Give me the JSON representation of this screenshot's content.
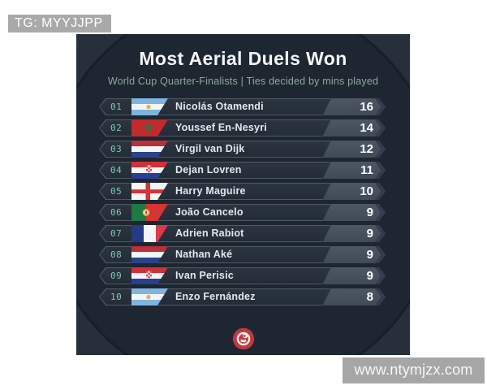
{
  "overlays": {
    "tg_label": "TG: MYYJJPP",
    "watermark": "www.ntymjzx.com"
  },
  "card": {
    "title": "Most Aerial Duels Won",
    "subtitle": "World Cup Quarter-Finalists | Ties decided by mins played",
    "logo_icon": "red-swirl-brand-logo"
  },
  "colors": {
    "card_inner": "#1e2631",
    "card_outer": "#272f3a",
    "rank_accent": "#7ec9b1",
    "subtitle": "#8fa89d",
    "logo_red": "#be3a3f"
  },
  "chart_data": {
    "type": "table",
    "title": "Most Aerial Duels Won",
    "subtitle": "World Cup Quarter-Finalists | Ties decided by mins played",
    "columns": [
      "rank",
      "country_flag",
      "player",
      "aerial_duels_won"
    ],
    "rows": [
      {
        "rank": "01",
        "country": "Argentina",
        "player": "Nicolás Otamendi",
        "value": 16
      },
      {
        "rank": "02",
        "country": "Morocco",
        "player": "Youssef En-Nesyri",
        "value": 14
      },
      {
        "rank": "03",
        "country": "Netherlands",
        "player": "Virgil van Dijk",
        "value": 12
      },
      {
        "rank": "04",
        "country": "Croatia",
        "player": "Dejan Lovren",
        "value": 11
      },
      {
        "rank": "05",
        "country": "England",
        "player": "Harry Maguire",
        "value": 10
      },
      {
        "rank": "06",
        "country": "Portugal",
        "player": "João Cancelo",
        "value": 9
      },
      {
        "rank": "07",
        "country": "France",
        "player": "Adrien Rabiot",
        "value": 9
      },
      {
        "rank": "08",
        "country": "Netherlands",
        "player": "Nathan Aké",
        "value": 9
      },
      {
        "rank": "09",
        "country": "Croatia",
        "player": "Ivan Perisic",
        "value": 9
      },
      {
        "rank": "10",
        "country": "Argentina",
        "player": "Enzo Fernández",
        "value": 8
      }
    ]
  }
}
